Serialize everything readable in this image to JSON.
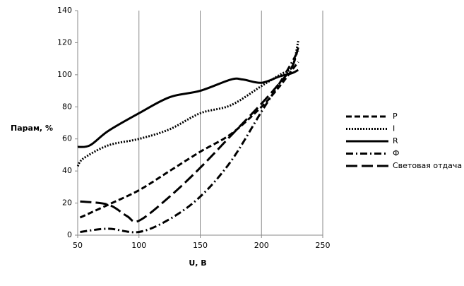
{
  "chart_data": {
    "type": "line",
    "x_label": "U, B",
    "y_label": "Парам, %",
    "xlim": [
      50,
      250
    ],
    "xticks": [
      50,
      100,
      150,
      200,
      250
    ],
    "ylim": [
      0,
      140
    ],
    "yticks": [
      0,
      20,
      40,
      60,
      80,
      100,
      120,
      140
    ],
    "grid": "x",
    "legend": "right",
    "series": [
      {
        "name": "P",
        "color": "#000000",
        "style": "dash",
        "x": [
          52,
          75,
          100,
          125,
          150,
          175,
          200,
          215,
          225,
          230
        ],
        "values": [
          11,
          19,
          28,
          40,
          52,
          63,
          80,
          93,
          103,
          108
        ]
      },
      {
        "name": "I",
        "color": "#000000",
        "style": "dot",
        "x": [
          50,
          55,
          75,
          100,
          125,
          150,
          175,
          200,
          215,
          225,
          230
        ],
        "values": [
          43,
          48,
          56,
          60,
          66,
          76,
          81,
          93,
          100,
          105,
          121
        ]
      },
      {
        "name": "R",
        "color": "#000000",
        "style": "solid",
        "x": [
          50,
          60,
          75,
          100,
          125,
          150,
          175,
          185,
          200,
          215,
          225,
          230
        ],
        "values": [
          55,
          56,
          65,
          76,
          86,
          90,
          97,
          97,
          95,
          99,
          101,
          103
        ]
      },
      {
        "name": "Ф",
        "color": "#000000",
        "style": "dashdot",
        "x": [
          52,
          75,
          100,
          125,
          150,
          175,
          200,
          215,
          225,
          230
        ],
        "values": [
          2,
          4,
          2,
          10,
          24,
          46,
          77,
          95,
          108,
          115
        ]
      },
      {
        "name": "Световая отдача",
        "color": "#000000",
        "style": "longdash",
        "x": [
          52,
          75,
          90,
          100,
          125,
          150,
          175,
          200,
          215,
          225,
          230
        ],
        "values": [
          21,
          19,
          12,
          9,
          24,
          42,
          62,
          82,
          95,
          105,
          117
        ]
      }
    ]
  }
}
